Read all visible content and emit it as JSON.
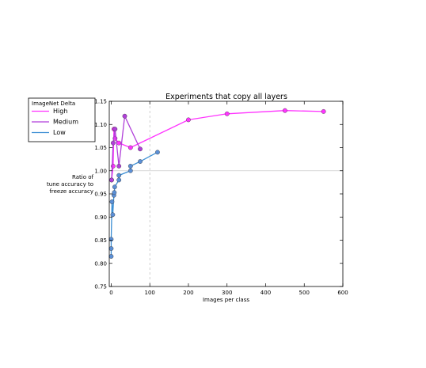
{
  "chart_data": {
    "type": "line",
    "title": "Experiments that copy all layers",
    "xlabel": "Images per class",
    "ylabel_lines": [
      "Ratio of",
      "tune accuracy to",
      "freeze accuracy"
    ],
    "xlim": [
      -5,
      600
    ],
    "ylim": [
      0.75,
      1.15
    ],
    "x_ticks": [
      0,
      100,
      200,
      300,
      400,
      500,
      600
    ],
    "y_ticks": [
      0.75,
      0.8,
      0.85,
      0.9,
      0.95,
      1.0,
      1.05,
      1.1,
      1.15
    ],
    "reference_lines": {
      "y": 1.0,
      "x": 100
    },
    "grid": false,
    "legend": {
      "title": "ImageNet Delta",
      "placement": "outside-top-left"
    },
    "series": [
      {
        "name": "High",
        "color": "#ff33ff",
        "points": [
          [
            1,
            0.98
          ],
          [
            5,
            1.01
          ],
          [
            7,
            1.09
          ],
          [
            10,
            1.07
          ],
          [
            20,
            1.06
          ],
          [
            50,
            1.05
          ],
          [
            200,
            1.11
          ],
          [
            300,
            1.123
          ],
          [
            450,
            1.13
          ],
          [
            550,
            1.128
          ]
        ]
      },
      {
        "name": "Medium",
        "color": "#b03fd9",
        "points": [
          [
            1,
            0.98
          ],
          [
            5,
            1.06
          ],
          [
            10,
            1.09
          ],
          [
            20,
            1.01
          ],
          [
            35,
            1.118
          ],
          [
            75,
            1.047
          ]
        ]
      },
      {
        "name": "Low",
        "color": "#3d8fd4",
        "marker_color": "#5b8fd6",
        "points": [
          [
            0,
            0.815
          ],
          [
            0,
            0.832
          ],
          [
            0,
            0.852
          ],
          [
            2,
            0.933
          ],
          [
            4,
            0.905
          ],
          [
            7,
            0.947
          ],
          [
            8,
            0.953
          ],
          [
            9,
            0.965
          ],
          [
            20,
            0.98
          ],
          [
            20,
            0.99
          ],
          [
            50,
            1.0
          ],
          [
            50,
            1.01
          ],
          [
            75,
            1.02
          ],
          [
            120,
            1.04
          ]
        ]
      }
    ]
  }
}
